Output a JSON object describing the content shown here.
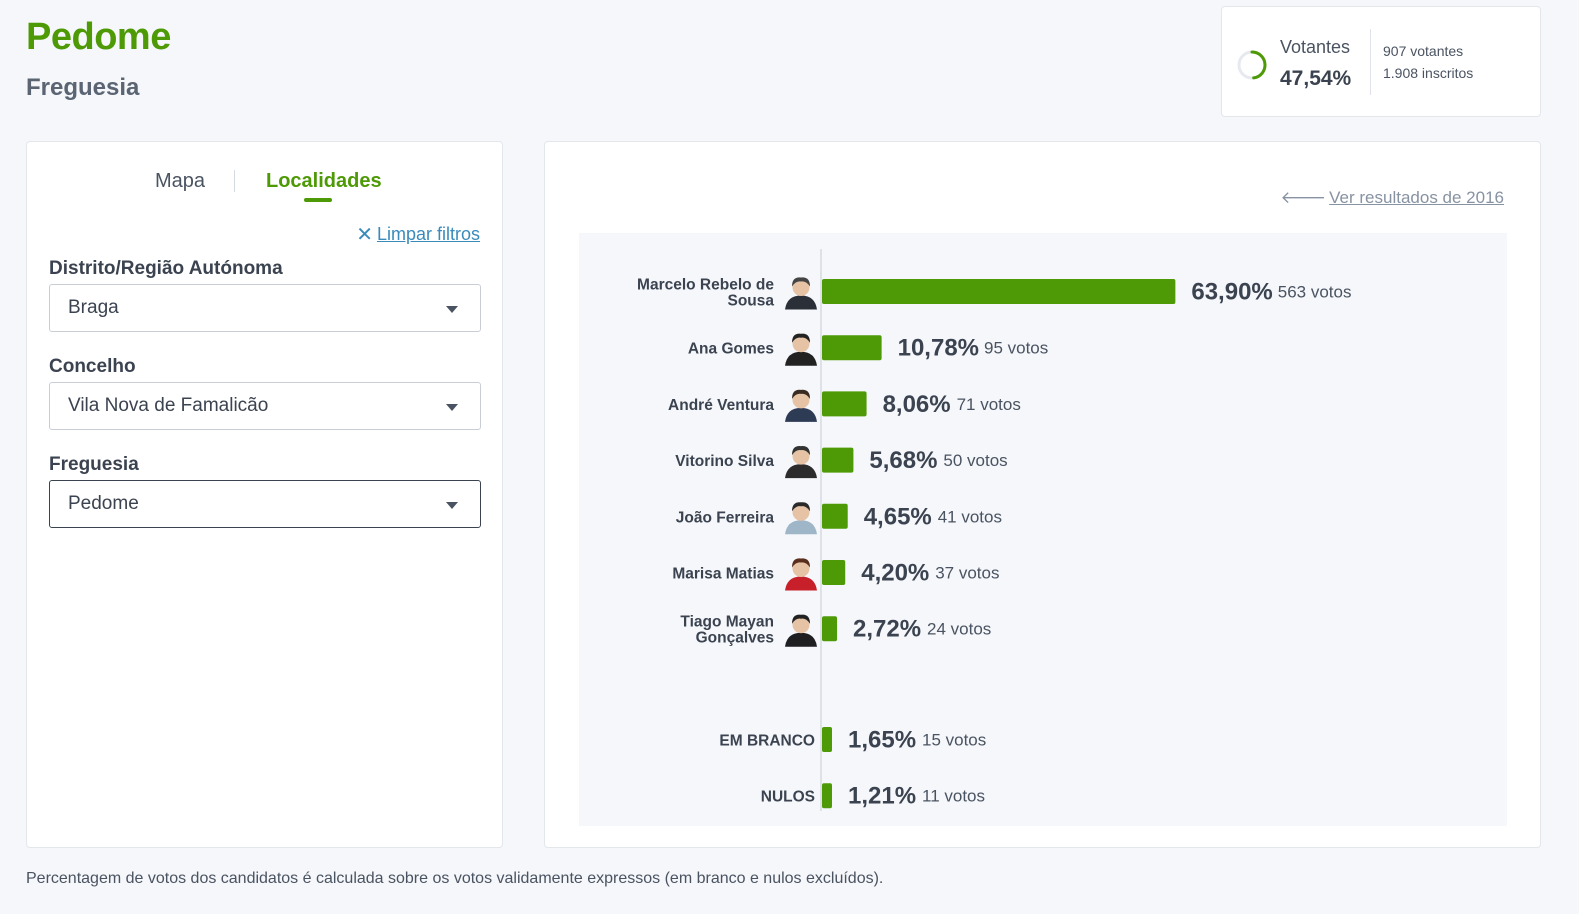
{
  "header": {
    "title": "Pedome",
    "subtitle": "Freguesia"
  },
  "turnout": {
    "label": "Votantes",
    "percent": "47,54%",
    "fraction": 0.4754,
    "voters": "907 votantes",
    "registered": "1.908 inscritos",
    "ring_color": "#4e9a06"
  },
  "tabs": {
    "map": "Mapa",
    "localities": "Localidades"
  },
  "filters": {
    "clear_label": "Limpar filtros",
    "district_label": "Distrito/Região Autónoma",
    "district_value": "Braga",
    "municipality_label": "Concelho",
    "municipality_value": "Vila Nova de Famalicão",
    "parish_label": "Freguesia",
    "parish_value": "Pedome"
  },
  "results": {
    "previous_link": "Ver resultados de 2016"
  },
  "chart_data": {
    "type": "bar",
    "orientation": "horizontal",
    "bar_color": "#4e9a06",
    "xlim": [
      0,
      100
    ],
    "candidates": [
      {
        "name_lines": [
          "Marcelo Rebelo de",
          "Sousa"
        ],
        "percent": 63.9,
        "percent_label": "63,90%",
        "votes_label": "563 votos",
        "has_photo": true
      },
      {
        "name_lines": [
          "Ana Gomes"
        ],
        "percent": 10.78,
        "percent_label": "10,78%",
        "votes_label": "95 votos",
        "has_photo": true
      },
      {
        "name_lines": [
          "André Ventura"
        ],
        "percent": 8.06,
        "percent_label": "8,06%",
        "votes_label": "71 votos",
        "has_photo": true
      },
      {
        "name_lines": [
          "Vitorino Silva"
        ],
        "percent": 5.68,
        "percent_label": "5,68%",
        "votes_label": "50 votos",
        "has_photo": true
      },
      {
        "name_lines": [
          "João Ferreira"
        ],
        "percent": 4.65,
        "percent_label": "4,65%",
        "votes_label": "41 votos",
        "has_photo": true
      },
      {
        "name_lines": [
          "Marisa Matias"
        ],
        "percent": 4.2,
        "percent_label": "4,20%",
        "votes_label": "37 votos",
        "has_photo": true
      },
      {
        "name_lines": [
          "Tiago Mayan",
          "Gonçalves"
        ],
        "percent": 2.72,
        "percent_label": "2,72%",
        "votes_label": "24 votos",
        "has_photo": true
      }
    ],
    "others": [
      {
        "name_lines": [
          "EM BRANCO"
        ],
        "percent": 1.65,
        "percent_label": "1,65%",
        "votes_label": "15 votos",
        "has_photo": false
      },
      {
        "name_lines": [
          "NULOS"
        ],
        "percent": 1.21,
        "percent_label": "1,21%",
        "votes_label": "11 votos",
        "has_photo": false
      }
    ]
  },
  "footnote": "Percentagem de votos dos candidatos é calculada sobre os votos validamente expressos (em branco e nulos excluídos)."
}
